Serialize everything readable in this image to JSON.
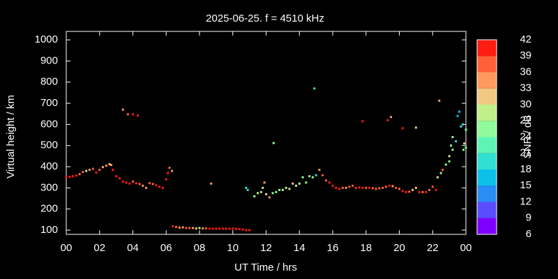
{
  "chart_data": {
    "type": "scatter",
    "title": "2025-06-25. f = 4510 kHz",
    "xlabel": "UT Time / hrs",
    "ylabel": "Virtual height / km",
    "colorbar_label": "SNR / dB",
    "xlim": [
      0,
      24
    ],
    "xticks": [
      {
        "value": 0,
        "label": "00"
      },
      {
        "value": 2,
        "label": "02"
      },
      {
        "value": 4,
        "label": "04"
      },
      {
        "value": 6,
        "label": "06"
      },
      {
        "value": 8,
        "label": "08"
      },
      {
        "value": 10,
        "label": "10"
      },
      12,
      14,
      16,
      18,
      20,
      22,
      {
        "value": 24,
        "label": "00"
      }
    ],
    "ylim": [
      80,
      1040
    ],
    "yticks": [
      100,
      200,
      300,
      400,
      500,
      600,
      700,
      800,
      900,
      1000
    ],
    "clim": [
      6,
      42
    ],
    "cticks": [
      6,
      9,
      12,
      15,
      18,
      21,
      24,
      27,
      30,
      33,
      36,
      39,
      42
    ],
    "colors": [
      "#8000ff",
      "#5a4dff",
      "#2a8cf5",
      "#0dc0e8",
      "#30e0d0",
      "#5ef5b4",
      "#90fb9c",
      "#c0f088",
      "#f0c880",
      "#ff9a5c",
      "#ff6038",
      "#ff1c10"
    ],
    "series": [
      {
        "x": [
          0.0,
          0.2,
          0.4,
          0.6,
          0.8,
          1.0,
          1.2,
          1.4,
          1.6,
          1.8,
          2.0,
          2.2,
          2.4,
          2.6,
          2.7,
          2.8,
          3.0,
          3.2,
          3.4,
          3.6,
          3.8,
          4.0,
          4.2,
          4.4,
          4.6,
          4.8,
          5.0,
          5.2,
          5.4,
          5.6,
          5.8,
          6.0,
          6.1,
          6.2,
          6.35,
          3.4,
          3.7,
          4.0,
          4.3,
          8.7,
          6.4,
          6.6,
          6.8,
          7.0,
          7.2,
          7.4,
          7.6,
          7.8,
          8.0,
          8.2,
          8.4,
          8.6,
          8.8,
          9.0,
          9.2,
          9.4,
          9.6,
          9.8,
          10.0,
          10.2,
          10.4,
          10.6,
          10.8,
          11.0,
          10.8,
          10.9,
          11.3,
          11.5,
          11.7,
          11.8,
          11.9,
          12.0,
          12.2,
          12.4,
          12.45,
          12.6,
          12.8,
          13.0,
          13.2,
          13.4,
          13.6,
          13.8,
          14.0,
          14.2,
          14.4,
          14.6,
          14.8,
          14.9,
          15.0,
          15.2,
          15.4,
          15.6,
          15.8,
          16.0,
          16.2,
          16.4,
          16.6,
          16.8,
          17.0,
          17.2,
          17.4,
          17.6,
          17.8,
          18.0,
          18.2,
          18.4,
          18.6,
          18.8,
          19.0,
          19.2,
          19.4,
          19.6,
          19.8,
          20.0,
          20.2,
          20.4,
          20.6,
          20.8,
          21.0,
          21.2,
          21.4,
          21.6,
          21.8,
          22.0,
          22.2,
          22.3,
          22.5,
          22.6,
          22.8,
          23.0,
          23.0,
          23.2,
          23.1,
          23.2,
          23.4,
          23.5,
          23.6,
          23.7,
          23.8,
          23.9,
          23.85,
          24.0,
          24.0,
          17.8,
          19.3,
          19.5,
          20.2,
          21.0,
          22.4
        ],
        "values": [
          350,
          352,
          355,
          358,
          365,
          375,
          380,
          385,
          390,
          372,
          385,
          398,
          405,
          412,
          408,
          385,
          355,
          345,
          330,
          325,
          320,
          330,
          322,
          318,
          310,
          300,
          322,
          318,
          312,
          305,
          300,
          340,
          370,
          395,
          380,
          670,
          648,
          648,
          642,
          320,
          118,
          115,
          112,
          113,
          110,
          110,
          110,
          108,
          110,
          108,
          108,
          107,
          107,
          107,
          107,
          107,
          107,
          107,
          107,
          106,
          105,
          103,
          100,
          100,
          300,
          290,
          260,
          275,
          280,
          300,
          325,
          270,
          255,
          275,
          512,
          280,
          290,
          290,
          300,
          295,
          320,
          310,
          320,
          350,
          325,
          355,
          350,
          770,
          360,
          385,
          360,
          335,
          325,
          310,
          300,
          295,
          300,
          300,
          305,
          310,
          300,
          302,
          300,
          300,
          300,
          298,
          295,
          298,
          300,
          305,
          310,
          308,
          300,
          295,
          285,
          280,
          282,
          290,
          300,
          280,
          280,
          280,
          290,
          305,
          290,
          350,
          370,
          385,
          410,
          425,
          450,
          480,
          500,
          540,
          520,
          640,
          660,
          590,
          600,
          510,
          480,
          575,
          490,
          615,
          620,
          635,
          582,
          585,
          712
        ],
        "snr": [
          40,
          40,
          40,
          39,
          38,
          36,
          28,
          33,
          38,
          39,
          38,
          33,
          33,
          30,
          33,
          39,
          40,
          40,
          40,
          40,
          40,
          38,
          39,
          38,
          35,
          33,
          38,
          38,
          39,
          40,
          40,
          40,
          40,
          38,
          33,
          33,
          36,
          39,
          40,
          35,
          40,
          36,
          33,
          35,
          38,
          36,
          33,
          31,
          28,
          33,
          36,
          39,
          40,
          40,
          39,
          40,
          40,
          40,
          40,
          40,
          40,
          40,
          40,
          40,
          18,
          18,
          24,
          27,
          24,
          27,
          33,
          30,
          35,
          24,
          24,
          24,
          24,
          27,
          27,
          27,
          30,
          27,
          27,
          24,
          24,
          24,
          24,
          20,
          18,
          33,
          36,
          38,
          39,
          39,
          40,
          40,
          36,
          33,
          38,
          36,
          40,
          40,
          39,
          38,
          40,
          36,
          38,
          37,
          38,
          36,
          40,
          35,
          38,
          38,
          39,
          40,
          38,
          30,
          30,
          40,
          38,
          39,
          36,
          36,
          40,
          27,
          24,
          38,
          24,
          24,
          27,
          24,
          24,
          24,
          20,
          15,
          15,
          18,
          18,
          30,
          24,
          24,
          24,
          40,
          40,
          35,
          40,
          30,
          33
        ]
      }
    ]
  }
}
